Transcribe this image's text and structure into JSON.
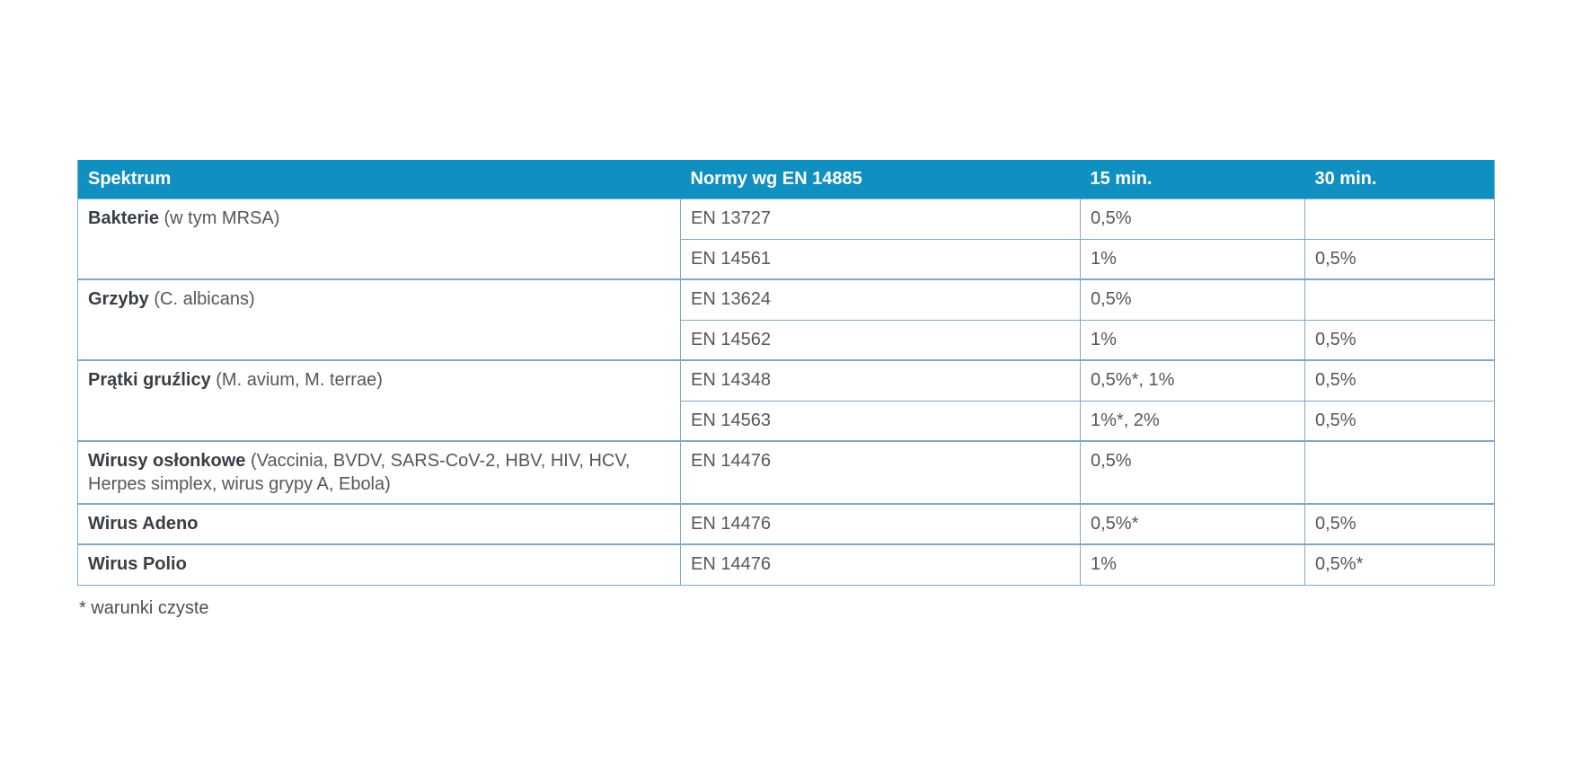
{
  "colors": {
    "header_bg": "#1090c0",
    "header_text": "#ffffff",
    "border": "#7ea9cd",
    "body_text": "#54575b",
    "name_text": "#393e44",
    "footnote_text": "#4c4f53",
    "page_bg": "#ffffff"
  },
  "table": {
    "headers": [
      "Spektrum",
      "Normy wg EN 14885",
      "15 min.",
      "30 min."
    ],
    "groups": [
      {
        "name": "Bakterie",
        "detail": "(w tym MRSA)",
        "rows": [
          {
            "norm": "EN 13727",
            "min15": "0,5%",
            "min30": ""
          },
          {
            "norm": "EN 14561",
            "min15": "1%",
            "min30": "0,5%"
          }
        ]
      },
      {
        "name": "Grzyby",
        "detail": "(C. albicans)",
        "rows": [
          {
            "norm": "EN 13624",
            "min15": "0,5%",
            "min30": ""
          },
          {
            "norm": "EN 14562",
            "min15": "1%",
            "min30": "0,5%"
          }
        ]
      },
      {
        "name": "Prątki gruźlicy",
        "detail": "(M. avium, M. terrae)",
        "rows": [
          {
            "norm": "EN 14348",
            "min15": "0,5%*, 1%",
            "min30": "0,5%"
          },
          {
            "norm": "EN 14563",
            "min15": "1%*, 2%",
            "min30": "0,5%"
          }
        ]
      },
      {
        "name": "Wirusy osłonkowe",
        "detail": "(Vaccinia, BVDV, SARS-CoV-2, HBV, HIV, HCV, Herpes simplex, wirus grypy A, Ebola)",
        "rows": [
          {
            "norm": "EN 14476",
            "min15": "0,5%",
            "min30": ""
          }
        ]
      },
      {
        "name": "Wirus Adeno",
        "detail": "",
        "rows": [
          {
            "norm": "EN 14476",
            "min15": "0,5%*",
            "min30": "0,5%"
          }
        ]
      },
      {
        "name": "Wirus Polio",
        "detail": "",
        "rows": [
          {
            "norm": "EN 14476",
            "min15": "1%",
            "min30": "0,5%*"
          }
        ]
      }
    ],
    "footnote": "* warunki czyste"
  }
}
